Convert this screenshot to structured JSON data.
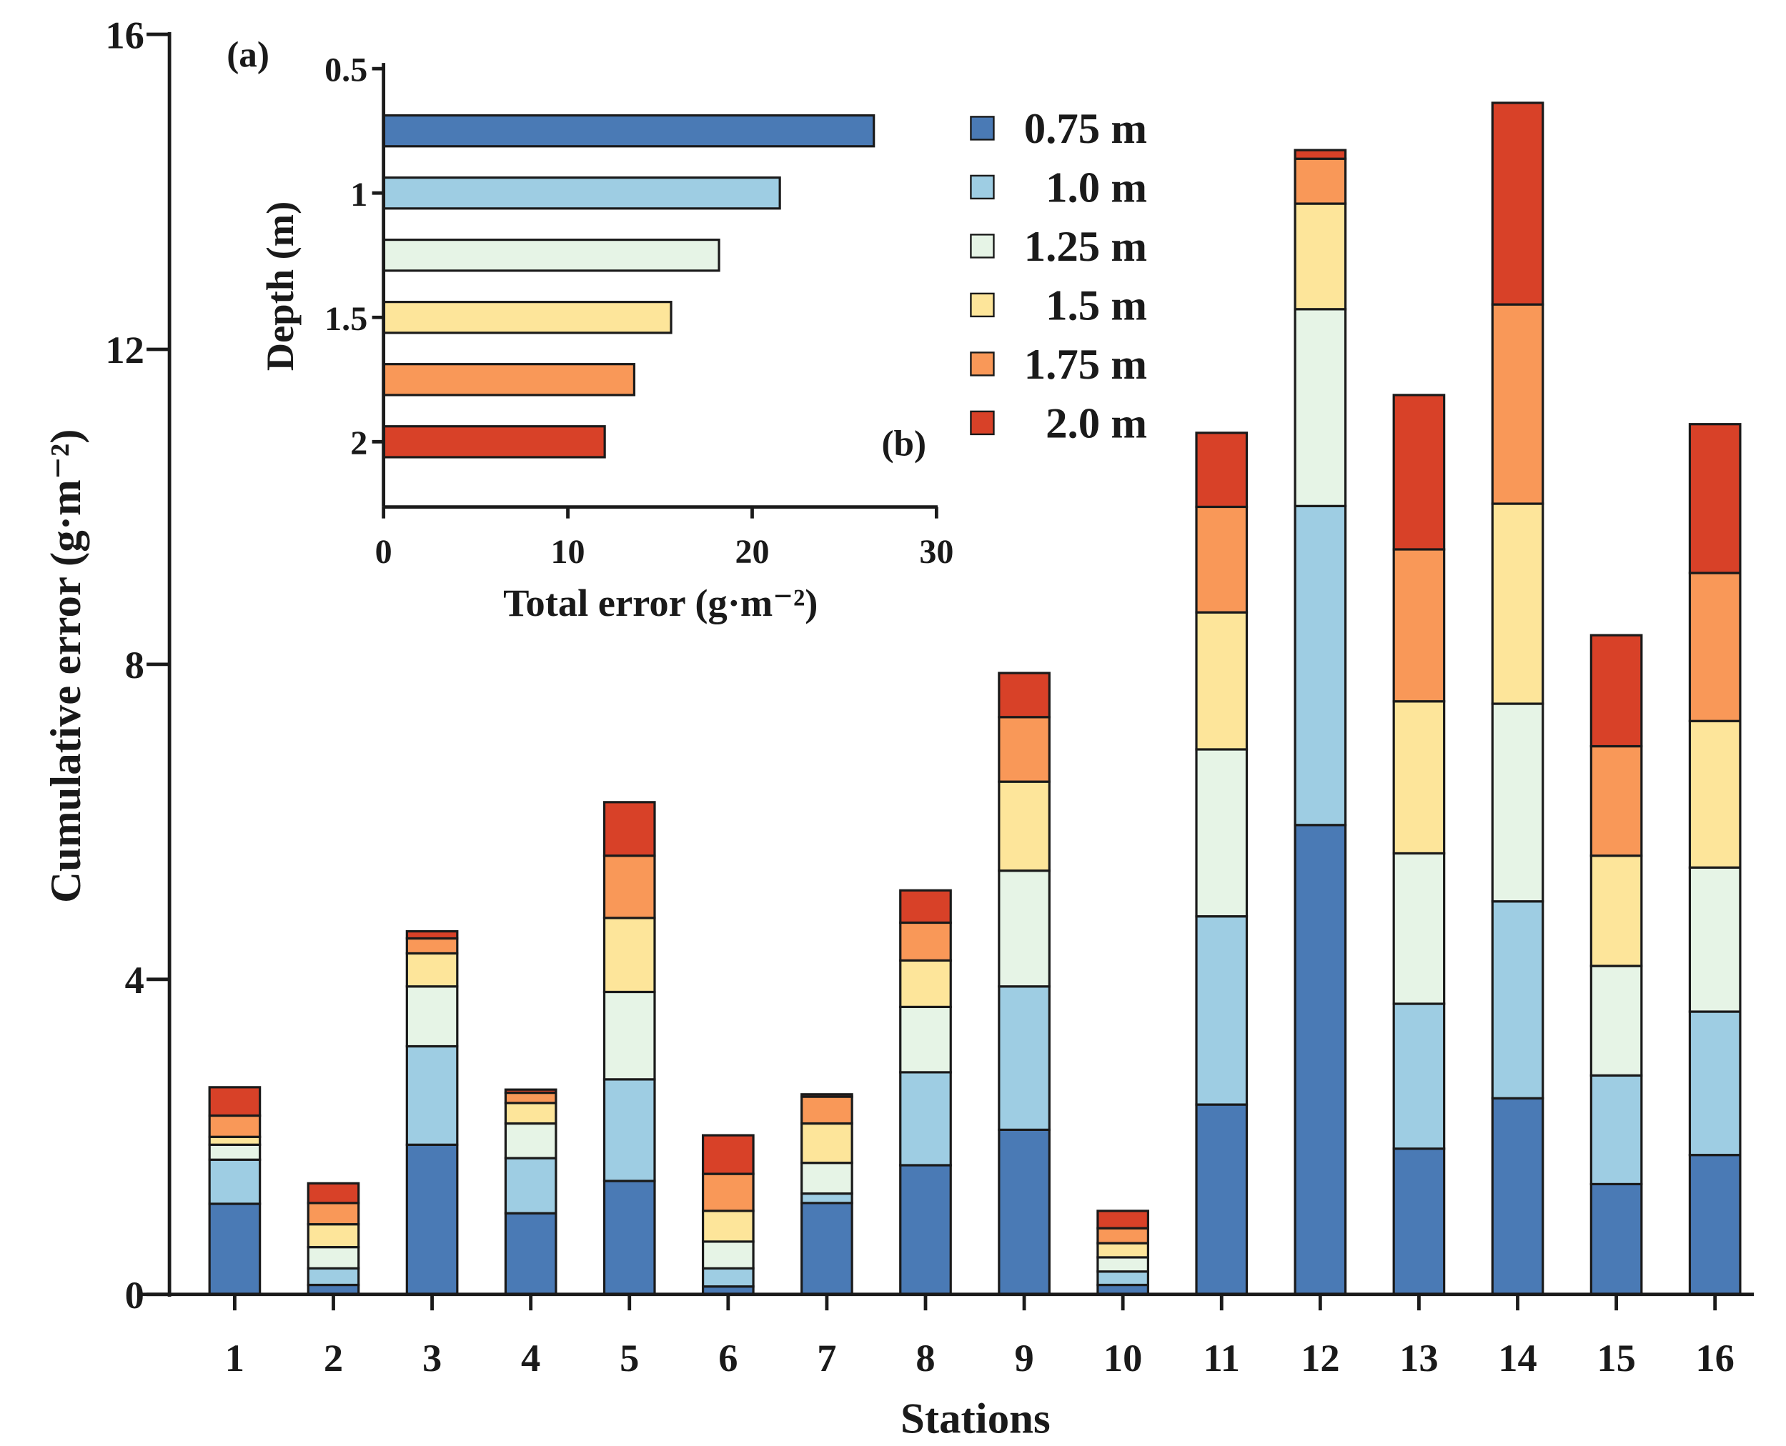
{
  "chart_data": [
    {
      "panel": "(a)",
      "type": "bar",
      "stacked": true,
      "xlabel": "Stations",
      "ylabel": "Cumulative error (g·m⁻²)",
      "ylim": [
        0,
        16
      ],
      "yticks": [
        0,
        4,
        8,
        12,
        16
      ],
      "categories": [
        "1",
        "2",
        "3",
        "4",
        "5",
        "6",
        "7",
        "8",
        "9",
        "10",
        "11",
        "12",
        "13",
        "14",
        "15",
        "16"
      ],
      "legend_position": "top-right",
      "series": [
        {
          "name": "0.75 m",
          "color": "#4a7ab5",
          "values": [
            1.15,
            0.12,
            1.9,
            1.03,
            1.44,
            0.1,
            1.16,
            1.64,
            2.09,
            0.12,
            2.41,
            5.96,
            1.85,
            2.49,
            1.4,
            1.77
          ]
        },
        {
          "name": "1.0 m",
          "color": "#9ecde3",
          "values": [
            0.56,
            0.21,
            1.25,
            0.7,
            1.29,
            0.23,
            0.12,
            1.18,
            1.82,
            0.17,
            2.39,
            4.05,
            1.84,
            2.5,
            1.38,
            1.82
          ]
        },
        {
          "name": "1.25 m",
          "color": "#e6f4e6",
          "values": [
            0.19,
            0.27,
            0.76,
            0.44,
            1.11,
            0.34,
            0.39,
            0.83,
            1.47,
            0.18,
            2.12,
            2.5,
            1.91,
            2.51,
            1.39,
            1.83
          ]
        },
        {
          "name": "1.5 m",
          "color": "#fde59a",
          "values": [
            0.1,
            0.29,
            0.42,
            0.26,
            0.94,
            0.39,
            0.5,
            0.59,
            1.13,
            0.18,
            1.74,
            1.34,
            1.93,
            2.54,
            1.4,
            1.86
          ]
        },
        {
          "name": "1.75 m",
          "color": "#f99858",
          "values": [
            0.27,
            0.27,
            0.19,
            0.13,
            0.79,
            0.47,
            0.34,
            0.48,
            0.82,
            0.19,
            1.34,
            0.57,
            1.93,
            2.53,
            1.39,
            1.88
          ]
        },
        {
          "name": "2.0 m",
          "color": "#d84128",
          "values": [
            0.36,
            0.25,
            0.09,
            0.04,
            0.68,
            0.49,
            0.03,
            0.41,
            0.56,
            0.22,
            0.94,
            0.11,
            1.96,
            2.56,
            1.41,
            1.89
          ]
        }
      ]
    },
    {
      "panel": "(b)",
      "type": "bar",
      "orientation": "horizontal",
      "xlabel": "Total error (g·m⁻²)",
      "ylabel": "Depth (m)",
      "xlim": [
        0,
        30
      ],
      "xticks": [
        0,
        10,
        20,
        30
      ],
      "ylim": [
        0.5,
        2.25
      ],
      "yticks": [
        0.5,
        1,
        1.5,
        2
      ],
      "ytick_labels": [
        "0.5",
        "1",
        "1.5",
        "2"
      ],
      "depths": [
        0.75,
        1.0,
        1.25,
        1.5,
        1.75,
        2.0
      ],
      "values": [
        26.6,
        21.5,
        18.2,
        15.6,
        13.6,
        12.0
      ],
      "colors": [
        "#4a7ab5",
        "#9ecde3",
        "#e6f4e6",
        "#fde59a",
        "#f99858",
        "#d84128"
      ]
    }
  ]
}
